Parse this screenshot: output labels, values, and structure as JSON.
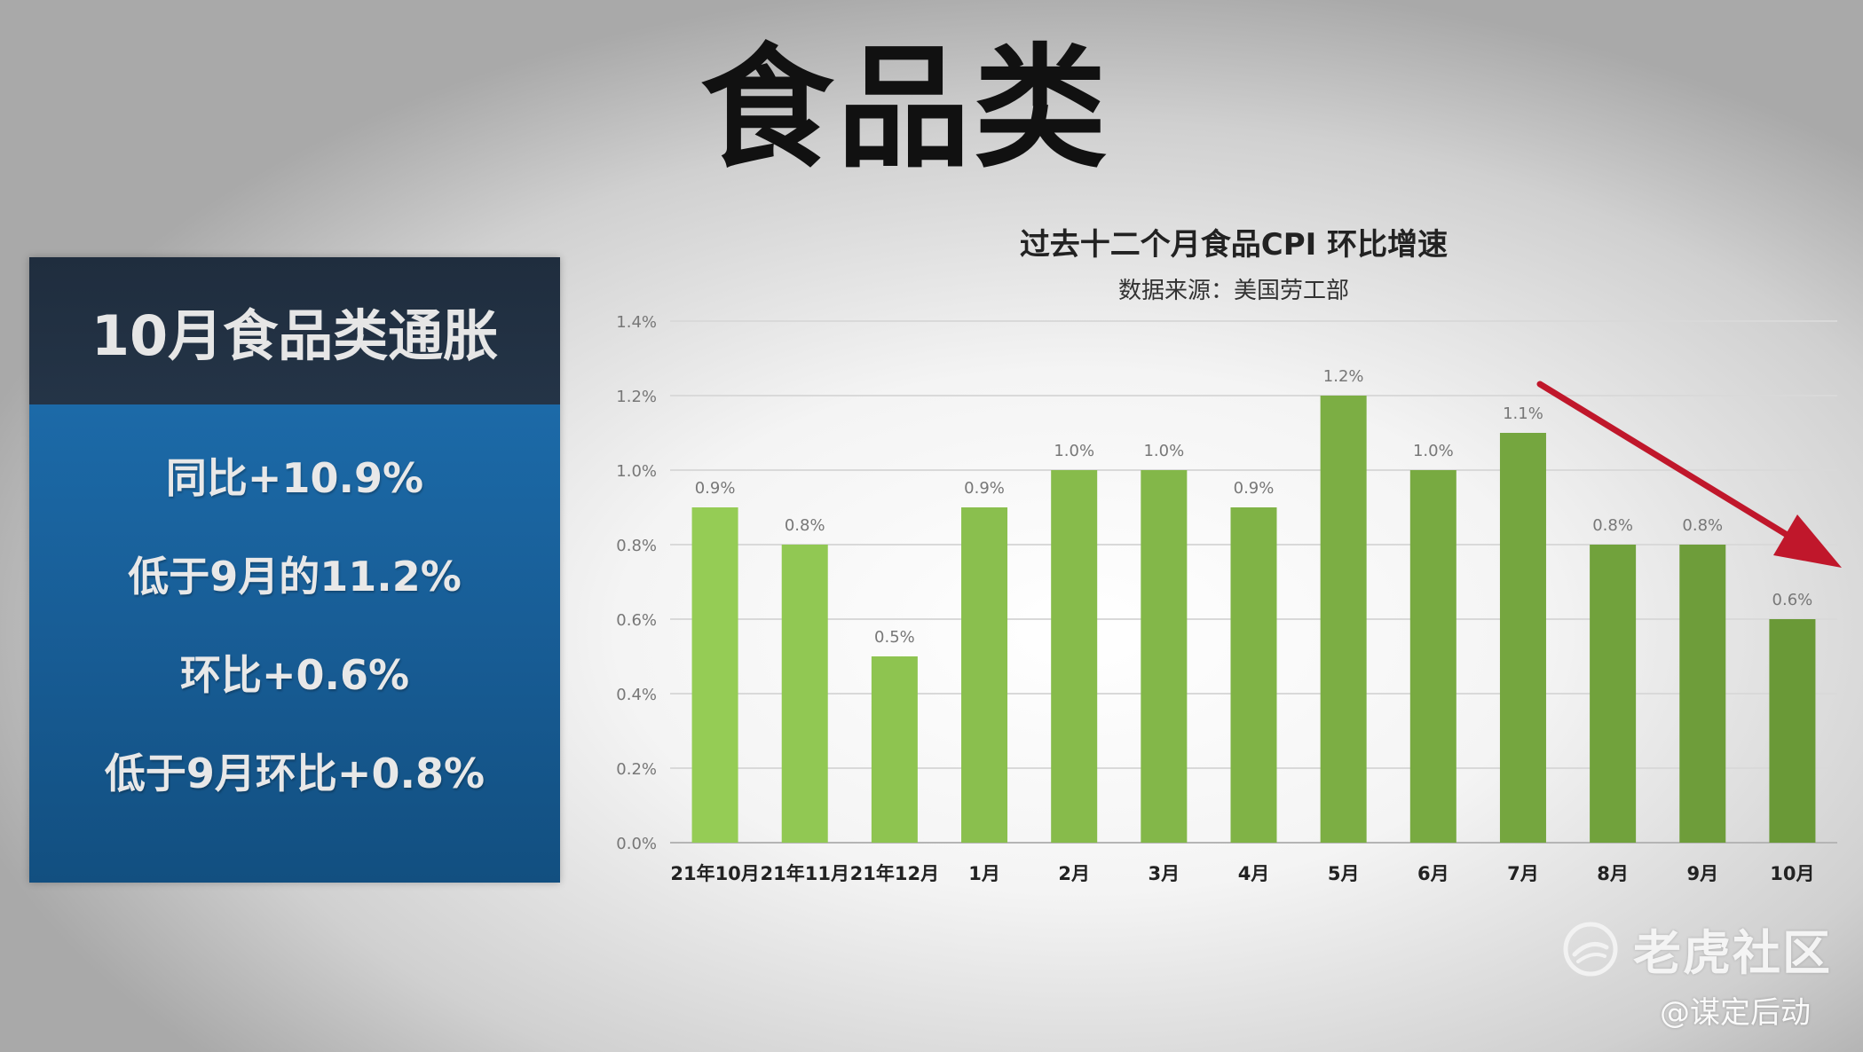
{
  "main_title": "食品类",
  "panel": {
    "header": "10月食品类通胀",
    "lines": [
      "同比+10.9%",
      "低于9月的11.2%",
      "环比+0.6%",
      "低于9月环比+0.8%"
    ]
  },
  "chart_data": {
    "type": "bar",
    "title": "过去十二个月食品CPI 环比增速",
    "subtitle": "数据来源：美国劳工部",
    "categories": [
      "21年10月",
      "21年11月",
      "21年12月",
      "1月",
      "2月",
      "3月",
      "4月",
      "5月",
      "6月",
      "7月",
      "8月",
      "9月",
      "10月"
    ],
    "values": [
      0.9,
      0.8,
      0.5,
      0.9,
      1.0,
      1.0,
      0.9,
      1.2,
      1.0,
      1.1,
      0.8,
      0.8,
      0.6
    ],
    "data_labels": [
      "0.9%",
      "0.8%",
      "0.5%",
      "0.9%",
      "1.0%",
      "1.0%",
      "0.9%",
      "1.2%",
      "1.0%",
      "1.1%",
      "0.8%",
      "0.8%",
      "0.6%"
    ],
    "yticks": [
      "0.0%",
      "0.2%",
      "0.4%",
      "0.6%",
      "0.8%",
      "1.0%",
      "1.2%",
      "1.4%"
    ],
    "ylim": [
      0,
      1.4
    ],
    "grid": true,
    "colors": {
      "light_green": "#92c94f",
      "dark_green": "#6e9c38",
      "arrow": "#c0172b"
    }
  },
  "watermark": {
    "brand": "老虎社区",
    "handle": "@谋定后动"
  }
}
